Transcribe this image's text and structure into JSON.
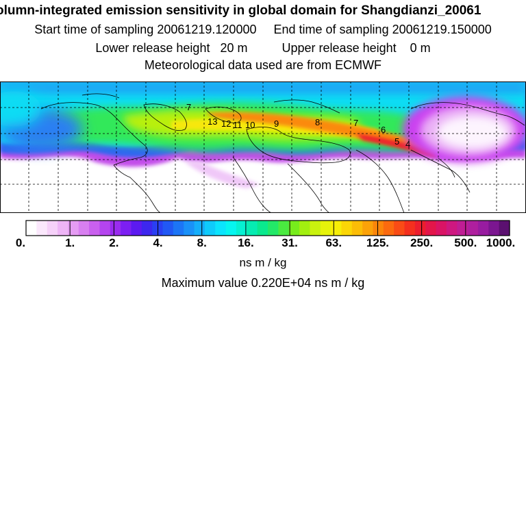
{
  "header": {
    "title": "olumn-integrated emission sensitivity in global domain for Shangdianzi_20061",
    "start_label": "Start time of sampling",
    "start_value": "20061219.120000",
    "end_label": "End time of sampling",
    "end_value": "20061219.150000",
    "lower_label": "Lower release height",
    "lower_value": "20 m",
    "upper_label": "Upper release height",
    "upper_value": "0 m",
    "met_text": "Meteorological data used are from ECMWF"
  },
  "map": {
    "trajectory_markers": [
      "7",
      "13",
      "12",
      "11",
      "10",
      "9",
      "8",
      "7",
      "6",
      "5",
      "4"
    ],
    "colors": {
      "land_line": "#000000",
      "grid_line": "#000000",
      "background": "#ffffff"
    }
  },
  "colorbar": {
    "colors": [
      "#ffffff",
      "#fbe8fc",
      "#f6d1f9",
      "#eeb5f6",
      "#e59cf3",
      "#d87ff0",
      "#c960ee",
      "#b444ee",
      "#9a2cf0",
      "#7c1ff2",
      "#5c1af0",
      "#3d27ee",
      "#2a3ff2",
      "#2158f4",
      "#1c75f6",
      "#1a91f8",
      "#15aefa",
      "#0fcbfb",
      "#0be4fd",
      "#06f5f0",
      "#06f0d2",
      "#06ecb2",
      "#0ae98e",
      "#23e868",
      "#4aea40",
      "#77ec1c",
      "#a2ef10",
      "#c9f20e",
      "#e6f30a",
      "#f6ee07",
      "#fbd606",
      "#fbbd07",
      "#fba209",
      "#fb860a",
      "#fb6a0f",
      "#f94c16",
      "#f4301e",
      "#ec1e2e",
      "#e3164a",
      "#da1465",
      "#ce1880",
      "#bf1d94",
      "#ae1f9e",
      "#981ca0",
      "#7b1690",
      "#5b1070"
    ],
    "tick_labels": [
      "0.",
      "1.",
      "2.",
      "4.",
      "8.",
      "16.",
      "31.",
      "63.",
      "125.",
      "250.",
      "500.",
      "1000."
    ],
    "unit": "ns m / kg",
    "max_label": "Maximum value",
    "max_value": "0.220E+04 ns m / kg"
  }
}
